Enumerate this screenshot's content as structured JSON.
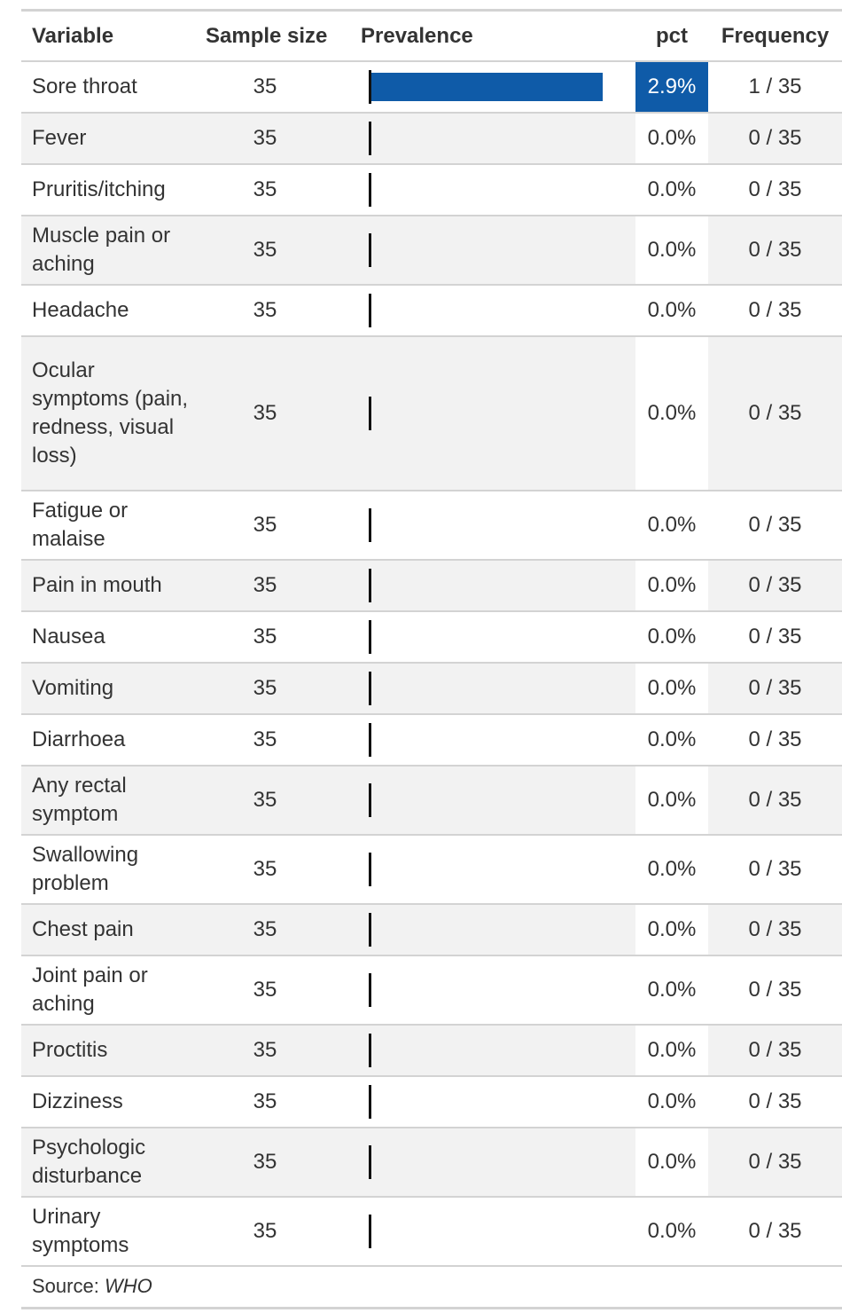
{
  "table": {
    "headers": {
      "variable": "Variable",
      "sample_size": "Sample size",
      "prevalence": "Prevalence",
      "pct": "pct",
      "frequency": "Frequency"
    },
    "source_label": "Source: ",
    "source_value": "WHO"
  },
  "colors": {
    "bar": "#0f5ba8",
    "pct_highlight_low": "#ffffff",
    "pct_highlight_high": "#0f5ba8",
    "row_alt": "#f2f2f2",
    "rule": "#d3d3d3"
  },
  "chart_data": {
    "type": "table",
    "columns": [
      "Variable",
      "Sample size",
      "Prevalence",
      "pct",
      "Frequency"
    ],
    "prevalence_scale_max": 2.9,
    "rows": [
      {
        "variable": "Sore throat",
        "sample_size": "35",
        "prevalence": 2.9,
        "pct": "2.9%",
        "frequency": "1 / 35"
      },
      {
        "variable": "Fever",
        "sample_size": "35",
        "prevalence": 0.0,
        "pct": "0.0%",
        "frequency": "0 / 35"
      },
      {
        "variable": "Pruritis/itching",
        "sample_size": "35",
        "prevalence": 0.0,
        "pct": "0.0%",
        "frequency": "0 / 35"
      },
      {
        "variable": "Muscle pain or aching",
        "sample_size": "35",
        "prevalence": 0.0,
        "pct": "0.0%",
        "frequency": "0 / 35"
      },
      {
        "variable": "Headache",
        "sample_size": "35",
        "prevalence": 0.0,
        "pct": "0.0%",
        "frequency": "0 / 35"
      },
      {
        "variable": "Ocular symptoms (pain, redness, visual loss)",
        "sample_size": "35",
        "prevalence": 0.0,
        "pct": "0.0%",
        "frequency": "0 / 35"
      },
      {
        "variable": "Fatigue or malaise",
        "sample_size": "35",
        "prevalence": 0.0,
        "pct": "0.0%",
        "frequency": "0 / 35"
      },
      {
        "variable": "Pain in mouth",
        "sample_size": "35",
        "prevalence": 0.0,
        "pct": "0.0%",
        "frequency": "0 / 35"
      },
      {
        "variable": "Nausea",
        "sample_size": "35",
        "prevalence": 0.0,
        "pct": "0.0%",
        "frequency": "0 / 35"
      },
      {
        "variable": "Vomiting",
        "sample_size": "35",
        "prevalence": 0.0,
        "pct": "0.0%",
        "frequency": "0 / 35"
      },
      {
        "variable": "Diarrhoea",
        "sample_size": "35",
        "prevalence": 0.0,
        "pct": "0.0%",
        "frequency": "0 / 35"
      },
      {
        "variable": "Any rectal symptom",
        "sample_size": "35",
        "prevalence": 0.0,
        "pct": "0.0%",
        "frequency": "0 / 35"
      },
      {
        "variable": "Swallowing problem",
        "sample_size": "35",
        "prevalence": 0.0,
        "pct": "0.0%",
        "frequency": "0 / 35"
      },
      {
        "variable": "Chest pain",
        "sample_size": "35",
        "prevalence": 0.0,
        "pct": "0.0%",
        "frequency": "0 / 35"
      },
      {
        "variable": "Joint pain or aching",
        "sample_size": "35",
        "prevalence": 0.0,
        "pct": "0.0%",
        "frequency": "0 / 35"
      },
      {
        "variable": "Proctitis",
        "sample_size": "35",
        "prevalence": 0.0,
        "pct": "0.0%",
        "frequency": "0 / 35"
      },
      {
        "variable": "Dizziness",
        "sample_size": "35",
        "prevalence": 0.0,
        "pct": "0.0%",
        "frequency": "0 / 35"
      },
      {
        "variable": "Psychologic disturbance",
        "sample_size": "35",
        "prevalence": 0.0,
        "pct": "0.0%",
        "frequency": "0 / 35"
      },
      {
        "variable": "Urinary symptoms",
        "sample_size": "35",
        "prevalence": 0.0,
        "pct": "0.0%",
        "frequency": "0 / 35"
      }
    ]
  }
}
